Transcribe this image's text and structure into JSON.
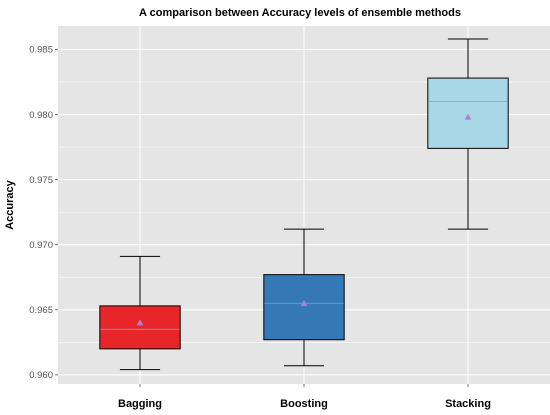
{
  "chart_data": {
    "type": "box",
    "title": "A comparison between Accuracy levels of ensemble methods",
    "xlabel": "",
    "ylabel": "Accuracy",
    "ylim": [
      0.9593,
      0.9868
    ],
    "yticks": [
      0.96,
      0.965,
      0.97,
      0.975,
      0.98,
      0.985
    ],
    "ytick_labels": [
      "0.960",
      "0.965",
      "0.970",
      "0.975",
      "0.980",
      "0.985"
    ],
    "grid": true,
    "categories": [
      "Bagging",
      "Boosting",
      "Stacking"
    ],
    "boxes": [
      {
        "category": "Bagging",
        "min": 0.9604,
        "q1": 0.962,
        "median": 0.9635,
        "q3": 0.9653,
        "max": 0.9691,
        "mean": 0.964,
        "color": "#e8262a"
      },
      {
        "category": "Boosting",
        "min": 0.9607,
        "q1": 0.9627,
        "median": 0.9655,
        "q3": 0.9677,
        "max": 0.9712,
        "mean": 0.9655,
        "color": "#3478b6"
      },
      {
        "category": "Stacking",
        "min": 0.9712,
        "q1": 0.9774,
        "median": 0.981,
        "q3": 0.9828,
        "max": 0.9858,
        "mean": 0.9798,
        "color": "#a8d8e8"
      }
    ],
    "colors": {
      "panel": "#e5e5e5",
      "grid": "#ffffff",
      "mean_marker": "#b07fd0"
    }
  }
}
